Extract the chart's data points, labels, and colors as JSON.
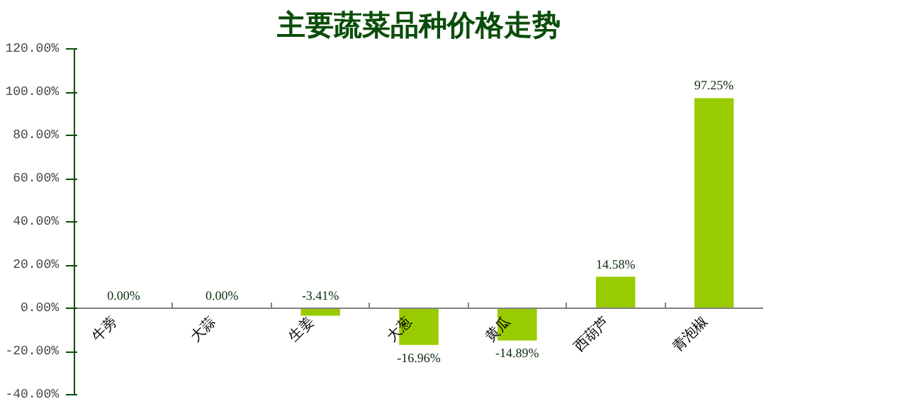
{
  "chart_data": {
    "type": "bar",
    "title": "主要蔬菜品种价格走势",
    "categories": [
      "牛蒡",
      "大蒜",
      "生姜",
      "大葱",
      "黄瓜",
      "西葫芦",
      "青泡椒"
    ],
    "values": [
      0,
      0,
      -3.41,
      -16.96,
      -14.89,
      14.58,
      97.25
    ],
    "value_labels": [
      "0.00%",
      "0.00%",
      "-3.41%",
      "-16.96%",
      "-14.89%",
      "14.58%",
      "97.25%"
    ],
    "color": "#99cc00",
    "ylim": [
      -40,
      120
    ],
    "yticks": [
      {
        "value": -40,
        "label": "-40.00%"
      },
      {
        "value": -20,
        "label": "-20.00%"
      },
      {
        "value": 0,
        "label": "0.00%"
      },
      {
        "value": 20,
        "label": "20.00%"
      },
      {
        "value": 40,
        "label": "40.00%"
      },
      {
        "value": 60,
        "label": "60.00%"
      },
      {
        "value": 80,
        "label": "80.00%"
      },
      {
        "value": 100,
        "label": "100.00%"
      },
      {
        "value": 120,
        "label": "120.00%"
      }
    ],
    "grid": false
  }
}
